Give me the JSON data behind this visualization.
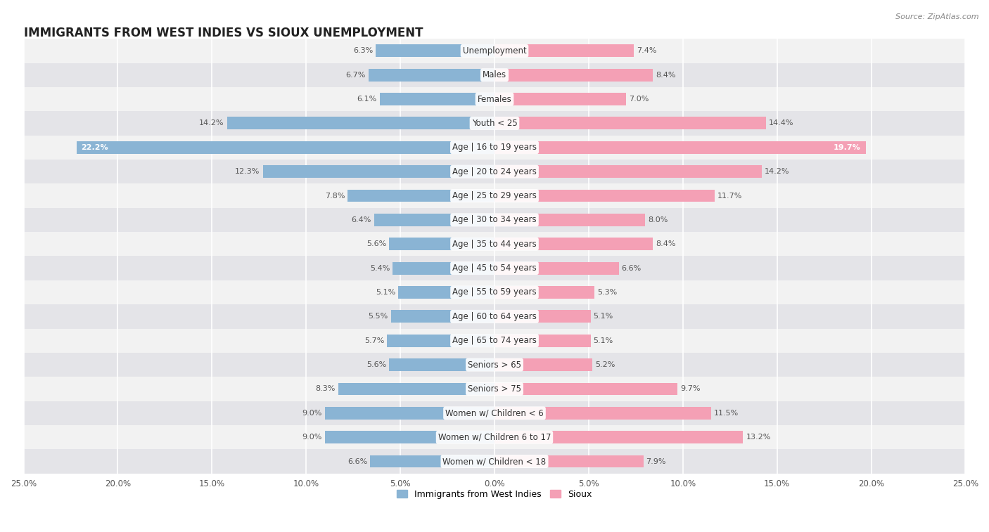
{
  "title": "IMMIGRANTS FROM WEST INDIES VS SIOUX UNEMPLOYMENT",
  "source": "Source: ZipAtlas.com",
  "categories": [
    "Unemployment",
    "Males",
    "Females",
    "Youth < 25",
    "Age | 16 to 19 years",
    "Age | 20 to 24 years",
    "Age | 25 to 29 years",
    "Age | 30 to 34 years",
    "Age | 35 to 44 years",
    "Age | 45 to 54 years",
    "Age | 55 to 59 years",
    "Age | 60 to 64 years",
    "Age | 65 to 74 years",
    "Seniors > 65",
    "Seniors > 75",
    "Women w/ Children < 6",
    "Women w/ Children 6 to 17",
    "Women w/ Children < 18"
  ],
  "left_values": [
    6.3,
    6.7,
    6.1,
    14.2,
    22.2,
    12.3,
    7.8,
    6.4,
    5.6,
    5.4,
    5.1,
    5.5,
    5.7,
    5.6,
    8.3,
    9.0,
    9.0,
    6.6
  ],
  "right_values": [
    7.4,
    8.4,
    7.0,
    14.4,
    19.7,
    14.2,
    11.7,
    8.0,
    8.4,
    6.6,
    5.3,
    5.1,
    5.1,
    5.2,
    9.7,
    11.5,
    13.2,
    7.9
  ],
  "left_color": "#8ab4d4",
  "right_color": "#f4a0b5",
  "left_label": "Immigrants from West Indies",
  "right_label": "Sioux",
  "axis_max": 25.0,
  "bar_height": 0.52,
  "row_bg_light": "#f2f2f2",
  "row_bg_dark": "#e4e4e8",
  "title_fontsize": 12,
  "label_fontsize": 8.5,
  "value_fontsize": 8.0,
  "tick_fontsize": 8.5
}
